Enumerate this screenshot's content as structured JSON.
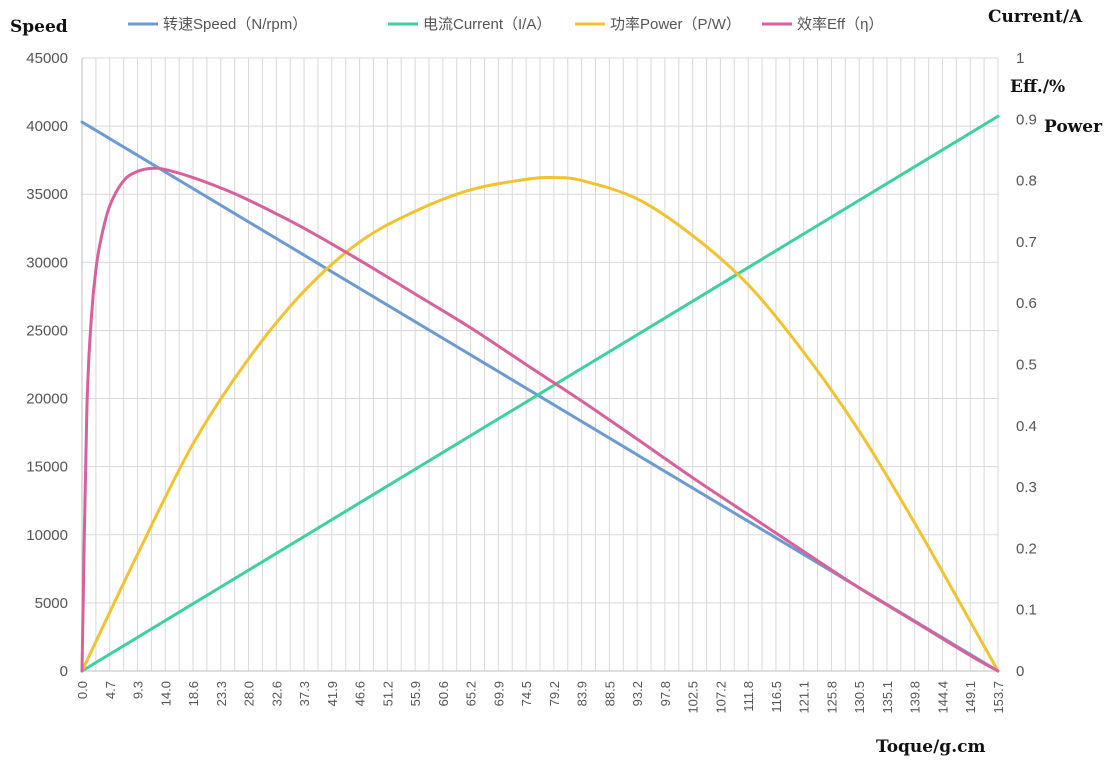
{
  "chart_data": {
    "type": "line",
    "title": "",
    "xlabel": "Toque/g.cm",
    "ylabel_left": "Speed",
    "ylabels_right": [
      "Current/A",
      "Eff./%",
      "Power"
    ],
    "x_ticks": [
      "0.0",
      "4.7",
      "9.3",
      "14.0",
      "18.6",
      "23.3",
      "28.0",
      "32.6",
      "37.3",
      "41.9",
      "46.6",
      "51.2",
      "55.9",
      "60.6",
      "65.2",
      "69.9",
      "74.5",
      "79.2",
      "83.9",
      "88.5",
      "93.2",
      "97.8",
      "102.5",
      "107.2",
      "111.8",
      "116.5",
      "121.1",
      "125.8",
      "130.5",
      "135.1",
      "139.8",
      "144.4",
      "149.1",
      "153.7"
    ],
    "xlim": [
      0,
      153.7
    ],
    "ylim_left": [
      0,
      45000
    ],
    "y_ticks_left": [
      "0",
      "5000",
      "10000",
      "15000",
      "20000",
      "25000",
      "30000",
      "35000",
      "40000",
      "45000"
    ],
    "ylim_right": [
      0,
      1
    ],
    "y_ticks_right": [
      "0",
      "0.1",
      "0.2",
      "0.3",
      "0.4",
      "0.5",
      "0.6",
      "0.7",
      "0.8",
      "0.9",
      "1"
    ],
    "grid": true,
    "legend_position": "top",
    "colors": {
      "speed": "#6b9bd1",
      "current": "#3ed1a0",
      "power": "#f2c230",
      "eff": "#d8609c",
      "grid": "#d9d9d9",
      "axis": "#bfbfbf"
    },
    "series": [
      {
        "name": "转速Speed（N/rpm）",
        "axis": "left",
        "x": [
          0.0,
          153.7
        ],
        "values": [
          40300,
          0
        ]
      },
      {
        "name": "电流Current（I/A）",
        "axis": "right",
        "x": [
          0.0,
          153.7
        ],
        "values": [
          0.0,
          0.905
        ]
      },
      {
        "name": "功率Power（P/W）",
        "axis": "right",
        "x": [
          0.0,
          9.3,
          18.6,
          28.0,
          37.3,
          46.6,
          55.9,
          65.2,
          74.5,
          79.2,
          83.9,
          93.2,
          102.5,
          111.8,
          121.1,
          130.5,
          139.8,
          149.1,
          153.7
        ],
        "values": [
          0.0,
          0.19,
          0.37,
          0.51,
          0.62,
          0.7,
          0.75,
          0.785,
          0.802,
          0.805,
          0.8,
          0.77,
          0.71,
          0.63,
          0.52,
          0.39,
          0.24,
          0.08,
          0.0
        ]
      },
      {
        "name": "效率Eff（η）",
        "axis": "right",
        "x": [
          0.0,
          0.8,
          1.6,
          2.4,
          3.3,
          4.7,
          7.0,
          9.3,
          11.7,
          14.0,
          18.6,
          23.3,
          28.0,
          37.3,
          46.6,
          55.9,
          65.2,
          74.5,
          83.9,
          93.2,
          102.5,
          111.8,
          121.1,
          130.5,
          139.8,
          149.1,
          153.7
        ],
        "values": [
          0.0,
          0.42,
          0.58,
          0.66,
          0.71,
          0.76,
          0.8,
          0.815,
          0.82,
          0.818,
          0.805,
          0.788,
          0.768,
          0.722,
          0.67,
          0.615,
          0.56,
          0.5,
          0.44,
          0.378,
          0.315,
          0.255,
          0.195,
          0.135,
          0.08,
          0.025,
          0.0
        ]
      }
    ]
  }
}
